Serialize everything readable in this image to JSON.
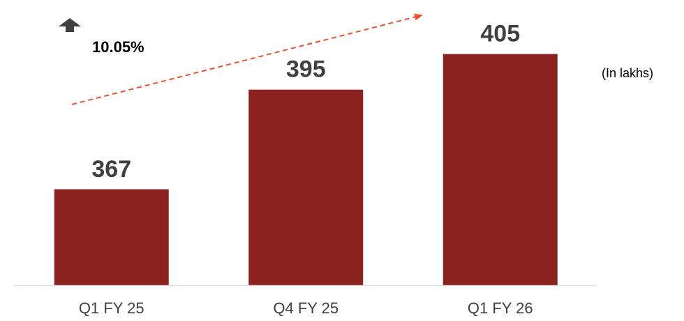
{
  "chart_data": {
    "type": "bar",
    "categories": [
      "Q1 FY 25",
      "Q4 FY 25",
      "Q1 FY 26"
    ],
    "values": [
      367,
      395,
      405
    ],
    "data_labels": [
      "367",
      "395",
      "405"
    ],
    "title": "",
    "xlabel": "",
    "ylabel": "",
    "unit_note": "(In lakhs)",
    "ylim": [
      340,
      410
    ],
    "grid": false,
    "annotation": {
      "growth_text": "10.05%",
      "direction_icon": "up-arrow-icon",
      "trend_arrow": "dashed-arrow-upward"
    },
    "colors": {
      "bar": "#8B2220",
      "trend_arrow": "#E8532B",
      "axis": "#d9d9d9",
      "value_text": "#404040",
      "growth_icon": "#404040"
    }
  }
}
